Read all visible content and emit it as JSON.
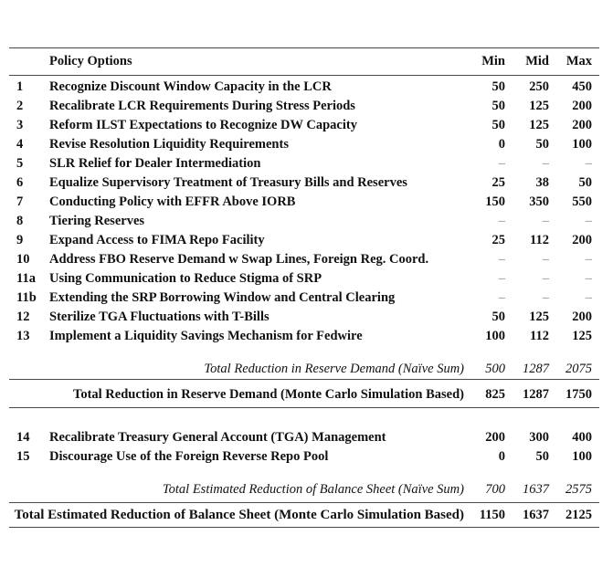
{
  "table": {
    "header": {
      "policy": "Policy Options",
      "min": "Min",
      "mid": "Mid",
      "max": "Max"
    },
    "rows": [
      {
        "num": "1",
        "label": "Recognize Discount Window Capacity in the LCR",
        "min": "50",
        "mid": "250",
        "max": "450"
      },
      {
        "num": "2",
        "label": "Recalibrate LCR Requirements During Stress Periods",
        "min": "50",
        "mid": "125",
        "max": "200"
      },
      {
        "num": "3",
        "label": "Reform ILST Expectations to Recognize DW Capacity",
        "min": "50",
        "mid": "125",
        "max": "200"
      },
      {
        "num": "4",
        "label": "Revise Resolution Liquidity Requirements",
        "min": "0",
        "mid": "50",
        "max": "100"
      },
      {
        "num": "5",
        "label": "SLR Relief for Dealer Intermediation",
        "min": "–",
        "mid": "–",
        "max": "–"
      },
      {
        "num": "6",
        "label": "Equalize Supervisory Treatment of Treasury Bills and Reserves",
        "min": "25",
        "mid": "38",
        "max": "50"
      },
      {
        "num": "7",
        "label": "Conducting Policy with EFFR Above IORB",
        "min": "150",
        "mid": "350",
        "max": "550"
      },
      {
        "num": "8",
        "label": "Tiering Reserves",
        "min": "–",
        "mid": "–",
        "max": "–"
      },
      {
        "num": "9",
        "label": "Expand Access to FIMA Repo Facility",
        "min": "25",
        "mid": "112",
        "max": "200"
      },
      {
        "num": "10",
        "label": "Address FBO Reserve Demand w Swap Lines, Foreign Reg. Coord.",
        "min": "–",
        "mid": "–",
        "max": "–"
      },
      {
        "num": "11a",
        "label": "Using Communication to Reduce Stigma of SRP",
        "min": "–",
        "mid": "–",
        "max": "–"
      },
      {
        "num": "11b",
        "label": "Extending the SRP Borrowing Window and Central Clearing",
        "min": "–",
        "mid": "–",
        "max": "–"
      },
      {
        "num": "12",
        "label": "Sterilize TGA Fluctuations with T-Bills",
        "min": "50",
        "mid": "125",
        "max": "200"
      },
      {
        "num": "13",
        "label": "Implement a Liquidity Savings Mechanism for Fedwire",
        "min": "100",
        "mid": "112",
        "max": "125"
      }
    ],
    "naive1": {
      "label": "Total Reduction in Reserve Demand (Naïve Sum)",
      "min": "500",
      "mid": "1287",
      "max": "2075"
    },
    "mc1": {
      "label": "Total Reduction in Reserve Demand (Monte Carlo Simulation Based)",
      "min": "825",
      "mid": "1287",
      "max": "1750"
    },
    "rows2": [
      {
        "num": "14",
        "label": "Recalibrate Treasury General Account (TGA) Management",
        "min": "200",
        "mid": "300",
        "max": "400"
      },
      {
        "num": "15",
        "label": "Discourage Use of the Foreign Reverse Repo Pool",
        "min": "0",
        "mid": "50",
        "max": "100"
      }
    ],
    "naive2": {
      "label": "Total Estimated Reduction of Balance Sheet (Naïve Sum)",
      "min": "700",
      "mid": "1637",
      "max": "2575"
    },
    "mc2": {
      "label": "Total Estimated Reduction of Balance Sheet (Monte Carlo Simulation Based)",
      "min": "1150",
      "mid": "1637",
      "max": "2125"
    }
  }
}
